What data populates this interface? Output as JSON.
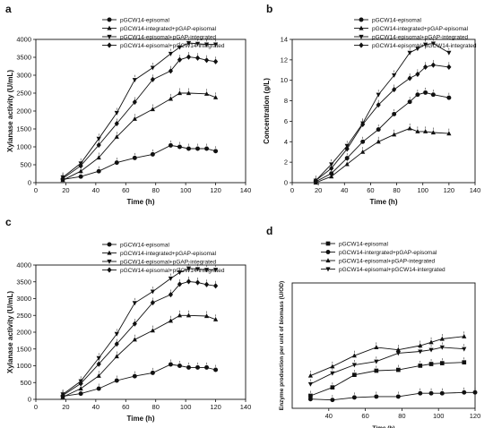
{
  "chart_data": [
    {
      "panel": "a",
      "type": "line",
      "xlabel": "Time (h)",
      "ylabel": "Xylanase activity (U/mL)",
      "xlim": [
        0,
        140
      ],
      "ylim": [
        0,
        4000
      ],
      "xticks": [
        0,
        20,
        40,
        60,
        80,
        100,
        120,
        140
      ],
      "yticks": [
        0,
        500,
        1000,
        1500,
        2000,
        2500,
        3000,
        3500,
        4000
      ],
      "legend_position": "top-left",
      "grid": false,
      "series": [
        {
          "name": "pGCW14-episomal",
          "marker": "circle",
          "x": [
            18,
            30,
            42,
            54,
            66,
            78,
            90,
            96,
            102,
            108,
            114,
            120
          ],
          "y": [
            90,
            170,
            320,
            560,
            690,
            790,
            1040,
            1000,
            950,
            950,
            950,
            880
          ]
        },
        {
          "name": "pGCW14-integrated+pGAP-episomal",
          "marker": "triangle-up",
          "x": [
            18,
            30,
            42,
            54,
            66,
            78,
            90,
            96,
            102,
            114,
            120
          ],
          "y": [
            70,
            320,
            700,
            1280,
            1780,
            2050,
            2340,
            2500,
            2500,
            2480,
            2380
          ]
        },
        {
          "name": "pGCW14-episomal+pGAP-integrated",
          "marker": "triangle-down",
          "x": [
            18,
            30,
            42,
            54,
            66,
            78,
            90,
            96,
            102,
            108,
            114,
            120
          ],
          "y": [
            150,
            540,
            1230,
            1950,
            2870,
            3210,
            3600,
            3780,
            3900,
            3880,
            3860,
            3860
          ]
        },
        {
          "name": "pGCW14-episomal+pGCW14-integrated",
          "marker": "diamond",
          "x": [
            18,
            30,
            42,
            54,
            66,
            78,
            90,
            96,
            102,
            108,
            114,
            120
          ],
          "y": [
            120,
            470,
            1050,
            1650,
            2250,
            2880,
            3120,
            3430,
            3510,
            3480,
            3420,
            3380
          ]
        }
      ]
    },
    {
      "panel": "b",
      "type": "line",
      "xlabel": "Time (h)",
      "ylabel": "Concentration (g/L)",
      "xlim": [
        0,
        140
      ],
      "ylim": [
        0,
        14
      ],
      "xticks": [
        0,
        20,
        40,
        60,
        80,
        100,
        120,
        140
      ],
      "yticks": [
        0,
        2,
        4,
        6,
        8,
        10,
        12,
        14
      ],
      "legend_position": "top-left",
      "grid": false,
      "series": [
        {
          "name": "pGCW14-episomal",
          "marker": "circle",
          "x": [
            18,
            30,
            42,
            54,
            66,
            78,
            90,
            96,
            102,
            108,
            120
          ],
          "y": [
            0.1,
            0.9,
            2.4,
            4.0,
            5.2,
            6.7,
            7.9,
            8.6,
            8.8,
            8.6,
            8.3
          ]
        },
        {
          "name": "pGCW14-integrated+pGAP-episomal",
          "marker": "triangle-up",
          "x": [
            18,
            30,
            42,
            54,
            66,
            78,
            90,
            96,
            102,
            108,
            120
          ],
          "y": [
            0.0,
            0.6,
            1.8,
            3.0,
            4.0,
            4.7,
            5.3,
            5.0,
            5.0,
            4.9,
            4.8
          ]
        },
        {
          "name": "pGCW14-episomal+pGAP-integrated",
          "marker": "triangle-down",
          "x": [
            18,
            30,
            42,
            54,
            66,
            78,
            90,
            96,
            102,
            108,
            120
          ],
          "y": [
            0.2,
            1.8,
            3.6,
            5.8,
            8.6,
            10.5,
            12.7,
            13.1,
            13.5,
            13.6,
            12.7
          ]
        },
        {
          "name": "pGCW14-episomal+pGCW14-integrated",
          "marker": "diamond",
          "x": [
            18,
            30,
            42,
            54,
            66,
            78,
            90,
            96,
            102,
            108,
            120
          ],
          "y": [
            0.2,
            1.4,
            3.3,
            5.7,
            7.6,
            9.1,
            10.2,
            10.6,
            11.3,
            11.5,
            11.3
          ]
        }
      ]
    },
    {
      "panel": "c",
      "type": "line",
      "xlabel": "Time (h)",
      "ylabel": "Xylanase activity (U/mL)",
      "xlim": [
        0,
        140
      ],
      "ylim": [
        0,
        4000
      ],
      "xticks": [
        0,
        20,
        40,
        60,
        80,
        100,
        120,
        140
      ],
      "yticks": [
        0,
        500,
        1000,
        1500,
        2000,
        2500,
        3000,
        3500,
        4000
      ],
      "legend_position": "top-left",
      "grid": false,
      "series": [
        {
          "name": "pGCW14-episomal",
          "marker": "circle",
          "x": [
            18,
            30,
            42,
            54,
            66,
            78,
            90,
            96,
            102,
            108,
            114,
            120
          ],
          "y": [
            90,
            170,
            320,
            560,
            690,
            790,
            1040,
            1000,
            950,
            950,
            950,
            880
          ]
        },
        {
          "name": "pGCW14-integrated+pGAP-episomal",
          "marker": "triangle-up",
          "x": [
            18,
            30,
            42,
            54,
            66,
            78,
            90,
            96,
            102,
            114,
            120
          ],
          "y": [
            70,
            320,
            700,
            1280,
            1780,
            2050,
            2340,
            2500,
            2500,
            2480,
            2380
          ]
        },
        {
          "name": "pGCW14-episomal+pGAP-integrated",
          "marker": "triangle-down",
          "x": [
            18,
            30,
            42,
            54,
            66,
            78,
            90,
            96,
            102,
            108,
            114,
            120
          ],
          "y": [
            150,
            540,
            1230,
            1950,
            2870,
            3210,
            3600,
            3780,
            3900,
            3880,
            3860,
            3860
          ]
        },
        {
          "name": "pGCW14-episomal+pGCW14-integrated",
          "marker": "diamond",
          "x": [
            18,
            30,
            42,
            54,
            66,
            78,
            90,
            96,
            102,
            108,
            114,
            120
          ],
          "y": [
            120,
            470,
            1050,
            1650,
            2250,
            2880,
            3120,
            3430,
            3510,
            3480,
            3420,
            3380
          ]
        }
      ]
    },
    {
      "panel": "d",
      "type": "line",
      "xlabel": "Time (h)",
      "ylabel": "Enzyme production per unit of biomass (U/OD)",
      "xlim": [
        20,
        120
      ],
      "ylim": [
        0,
        15
      ],
      "xticks": [
        40,
        60,
        80,
        100,
        120
      ],
      "yticks": [],
      "legend_position": "top-left",
      "grid": false,
      "series": [
        {
          "name": "pGCW14-episomal",
          "marker": "square",
          "x": [
            30,
            42,
            54,
            66,
            78,
            90,
            96,
            102,
            114
          ],
          "y": [
            1.5,
            2.5,
            4.0,
            4.5,
            4.6,
            5.1,
            5.3,
            5.4,
            5.5
          ]
        },
        {
          "name": "pGCW14-intergrated+pGAP-episomal",
          "marker": "circle",
          "x": [
            30,
            42,
            54,
            66,
            78,
            90,
            96,
            102,
            114,
            120
          ],
          "y": [
            1.1,
            1.0,
            1.3,
            1.4,
            1.4,
            1.8,
            1.8,
            1.8,
            1.9,
            1.9
          ]
        },
        {
          "name": "pGCW14-episomal+pGAP-integrated",
          "marker": "triangle-up",
          "x": [
            30,
            42,
            54,
            66,
            78,
            90,
            96,
            102,
            114
          ],
          "y": [
            3.9,
            5.0,
            6.3,
            7.3,
            7.0,
            7.5,
            7.9,
            8.3,
            8.6
          ]
        },
        {
          "name": "pGCW14-episomal+pGCW14-intergrated",
          "marker": "triangle-down",
          "x": [
            30,
            42,
            54,
            66,
            78,
            90,
            96,
            102,
            114
          ],
          "y": [
            2.9,
            4.2,
            5.2,
            5.6,
            6.6,
            6.8,
            7.0,
            7.3,
            7.1
          ]
        }
      ]
    }
  ]
}
